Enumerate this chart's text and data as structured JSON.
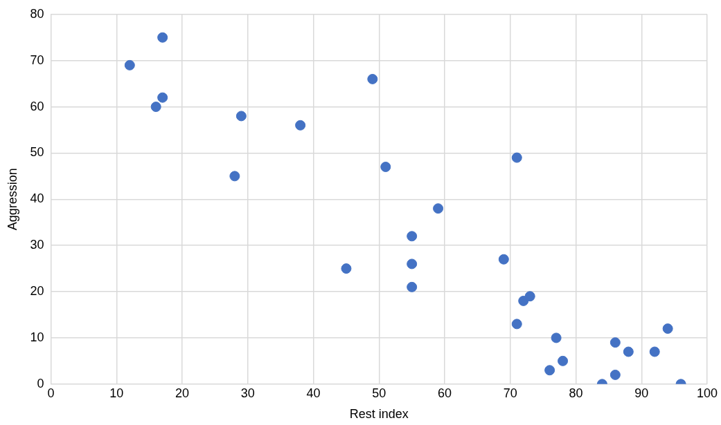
{
  "chart_data": {
    "type": "scatter",
    "xlabel": "Rest index",
    "ylabel": "Aggression",
    "x": [
      12,
      17,
      17,
      16,
      29,
      38,
      28,
      49,
      51,
      45,
      55,
      55,
      55,
      59,
      71,
      69,
      72,
      73,
      71,
      77,
      76,
      78,
      84,
      86,
      86,
      88,
      92,
      94,
      96
    ],
    "values": [
      69,
      75,
      62,
      60,
      58,
      56,
      45,
      66,
      47,
      25,
      32,
      26,
      21,
      38,
      49,
      27,
      18,
      19,
      13,
      10,
      3,
      5,
      0,
      9,
      2,
      7,
      7,
      12,
      0
    ],
    "color": "#4472c4",
    "marker": "circle",
    "grid": true,
    "legend": false,
    "xlim": [
      0,
      100
    ],
    "xticks": [
      0,
      10,
      20,
      30,
      40,
      50,
      60,
      70,
      80,
      90,
      100
    ],
    "ylim": [
      0,
      80
    ],
    "yticks": [
      0,
      10,
      20,
      30,
      40,
      50,
      60,
      70,
      80
    ]
  }
}
